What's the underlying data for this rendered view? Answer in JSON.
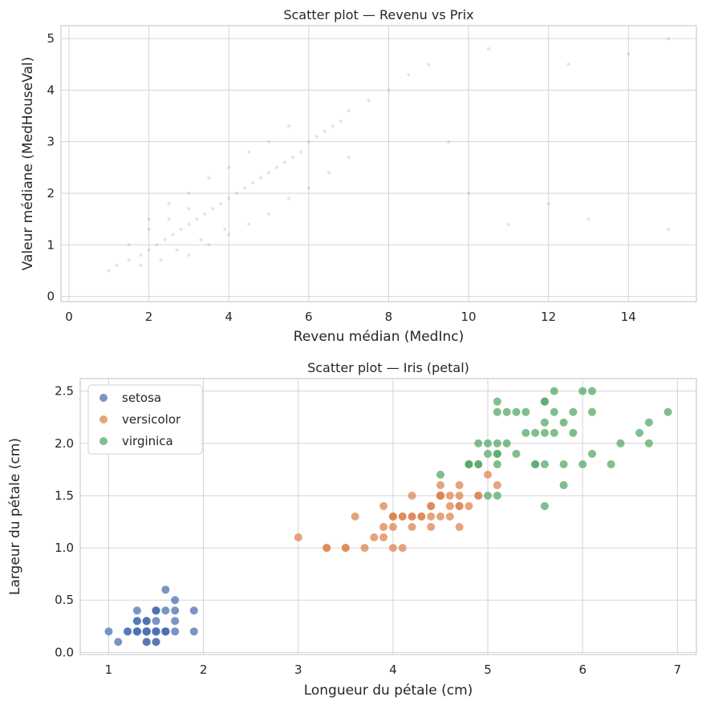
{
  "chart_data": [
    {
      "type": "scatter",
      "title": "Scatter plot — Revenu vs Prix",
      "xlabel": "Revenu médian (MedInc)",
      "ylabel": "Valeur médiane (MedHouseVal)",
      "xlim": [
        -0.2,
        15.7
      ],
      "ylim": [
        -0.1,
        5.25
      ],
      "x_ticks": [
        "0",
        "2",
        "4",
        "6",
        "8",
        "10",
        "12",
        "14"
      ],
      "x_tick_values": [
        0,
        2,
        4,
        6,
        8,
        10,
        12,
        14
      ],
      "y_ticks": [
        "0",
        "1",
        "2",
        "3",
        "4",
        "5"
      ],
      "y_tick_values": [
        0,
        1,
        2,
        3,
        4,
        5
      ],
      "grid": true,
      "series": [
        {
          "color": "#4682b4",
          "opacity": 0.2,
          "points": [
            [
              1.2,
              0.6
            ],
            [
              1.5,
              0.7
            ],
            [
              1.8,
              0.8
            ],
            [
              2.0,
              0.9
            ],
            [
              2.2,
              1.0
            ],
            [
              2.4,
              1.1
            ],
            [
              2.6,
              1.2
            ],
            [
              2.8,
              1.3
            ],
            [
              3.0,
              1.4
            ],
            [
              3.2,
              1.5
            ],
            [
              3.4,
              1.6
            ],
            [
              3.6,
              1.7
            ],
            [
              3.8,
              1.8
            ],
            [
              4.0,
              1.9
            ],
            [
              4.2,
              2.0
            ],
            [
              4.4,
              2.1
            ],
            [
              4.6,
              2.2
            ],
            [
              4.8,
              2.3
            ],
            [
              5.0,
              2.4
            ],
            [
              5.2,
              2.5
            ],
            [
              5.4,
              2.6
            ],
            [
              5.6,
              2.7
            ],
            [
              5.8,
              2.8
            ],
            [
              6.0,
              3.0
            ],
            [
              6.2,
              3.1
            ],
            [
              6.4,
              3.2
            ],
            [
              6.6,
              3.3
            ],
            [
              6.8,
              3.4
            ],
            [
              7.0,
              3.6
            ],
            [
              7.5,
              3.8
            ],
            [
              8.0,
              4.0
            ],
            [
              8.5,
              4.3
            ],
            [
              9.0,
              4.5
            ],
            [
              2.0,
              1.5
            ],
            [
              2.5,
              1.8
            ],
            [
              3.0,
              2.0
            ],
            [
              3.5,
              2.3
            ],
            [
              4.0,
              2.5
            ],
            [
              4.5,
              2.8
            ],
            [
              5.0,
              3.0
            ],
            [
              5.5,
              3.3
            ],
            [
              3.0,
              0.8
            ],
            [
              3.5,
              1.0
            ],
            [
              4.0,
              1.2
            ],
            [
              4.5,
              1.4
            ],
            [
              5.0,
              1.6
            ],
            [
              5.5,
              1.9
            ],
            [
              6.0,
              2.1
            ],
            [
              6.5,
              2.4
            ],
            [
              7.0,
              2.7
            ],
            [
              1.5,
              1.0
            ],
            [
              2.0,
              1.3
            ],
            [
              2.5,
              1.5
            ],
            [
              3.0,
              1.7
            ],
            [
              1.0,
              0.5
            ],
            [
              1.8,
              0.6
            ],
            [
              2.3,
              0.7
            ],
            [
              2.7,
              0.9
            ],
            [
              3.3,
              1.1
            ],
            [
              3.9,
              1.3
            ],
            [
              10.0,
              2.0
            ],
            [
              12.0,
              1.8
            ],
            [
              13.0,
              1.5
            ],
            [
              15.0,
              1.3
            ],
            [
              11.0,
              1.4
            ],
            [
              9.5,
              3.0
            ],
            [
              10.5,
              4.8
            ],
            [
              12.5,
              4.5
            ],
            [
              14.0,
              4.7
            ],
            [
              15.0,
              5.0
            ]
          ]
        }
      ]
    },
    {
      "type": "scatter",
      "title": "Scatter plot — Iris (petal)",
      "xlabel": "Longueur du pétale (cm)",
      "ylabel": "Largeur du pétale (cm)",
      "xlim": [
        0.7,
        7.2
      ],
      "ylim": [
        -0.02,
        2.62
      ],
      "x_ticks": [
        "1",
        "2",
        "3",
        "4",
        "5",
        "6",
        "7"
      ],
      "x_tick_values": [
        1,
        2,
        3,
        4,
        5,
        6,
        7
      ],
      "y_ticks": [
        "0.0",
        "0.5",
        "1.0",
        "1.5",
        "2.0",
        "2.5"
      ],
      "y_tick_values": [
        0,
        0.5,
        1.0,
        1.5,
        2.0,
        2.5
      ],
      "grid": true,
      "legend": "top-left",
      "series": [
        {
          "name": "setosa",
          "color": "#4c72b0",
          "points": [
            [
              1.4,
              0.2
            ],
            [
              1.4,
              0.2
            ],
            [
              1.3,
              0.2
            ],
            [
              1.5,
              0.2
            ],
            [
              1.4,
              0.2
            ],
            [
              1.7,
              0.4
            ],
            [
              1.4,
              0.3
            ],
            [
              1.5,
              0.2
            ],
            [
              1.4,
              0.2
            ],
            [
              1.5,
              0.1
            ],
            [
              1.5,
              0.2
            ],
            [
              1.6,
              0.2
            ],
            [
              1.4,
              0.1
            ],
            [
              1.1,
              0.1
            ],
            [
              1.2,
              0.2
            ],
            [
              1.5,
              0.4
            ],
            [
              1.3,
              0.4
            ],
            [
              1.4,
              0.3
            ],
            [
              1.7,
              0.3
            ],
            [
              1.5,
              0.3
            ],
            [
              1.7,
              0.2
            ],
            [
              1.5,
              0.4
            ],
            [
              1.0,
              0.2
            ],
            [
              1.7,
              0.5
            ],
            [
              1.9,
              0.2
            ],
            [
              1.6,
              0.2
            ],
            [
              1.6,
              0.4
            ],
            [
              1.5,
              0.2
            ],
            [
              1.4,
              0.2
            ],
            [
              1.6,
              0.2
            ],
            [
              1.6,
              0.2
            ],
            [
              1.5,
              0.4
            ],
            [
              1.5,
              0.1
            ],
            [
              1.4,
              0.2
            ],
            [
              1.5,
              0.2
            ],
            [
              1.2,
              0.2
            ],
            [
              1.3,
              0.2
            ],
            [
              1.4,
              0.1
            ],
            [
              1.3,
              0.2
            ],
            [
              1.5,
              0.2
            ],
            [
              1.3,
              0.3
            ],
            [
              1.3,
              0.3
            ],
            [
              1.3,
              0.2
            ],
            [
              1.6,
              0.6
            ],
            [
              1.9,
              0.4
            ],
            [
              1.4,
              0.3
            ],
            [
              1.6,
              0.2
            ],
            [
              1.4,
              0.2
            ],
            [
              1.5,
              0.2
            ],
            [
              1.4,
              0.2
            ]
          ]
        },
        {
          "name": "versicolor",
          "color": "#dd8452",
          "points": [
            [
              4.7,
              1.4
            ],
            [
              4.5,
              1.5
            ],
            [
              4.9,
              1.5
            ],
            [
              4.0,
              1.3
            ],
            [
              4.6,
              1.5
            ],
            [
              4.5,
              1.3
            ],
            [
              4.7,
              1.6
            ],
            [
              3.3,
              1.0
            ],
            [
              4.6,
              1.3
            ],
            [
              3.9,
              1.4
            ],
            [
              3.5,
              1.0
            ],
            [
              4.2,
              1.5
            ],
            [
              4.0,
              1.0
            ],
            [
              4.7,
              1.4
            ],
            [
              3.6,
              1.3
            ],
            [
              4.4,
              1.4
            ],
            [
              4.5,
              1.5
            ],
            [
              4.1,
              1.0
            ],
            [
              4.5,
              1.5
            ],
            [
              3.9,
              1.1
            ],
            [
              4.8,
              1.8
            ],
            [
              4.0,
              1.3
            ],
            [
              4.9,
              1.5
            ],
            [
              4.7,
              1.2
            ],
            [
              4.3,
              1.3
            ],
            [
              4.4,
              1.4
            ],
            [
              4.8,
              1.4
            ],
            [
              5.0,
              1.7
            ],
            [
              4.5,
              1.5
            ],
            [
              3.5,
              1.0
            ],
            [
              3.8,
              1.1
            ],
            [
              3.7,
              1.0
            ],
            [
              3.9,
              1.2
            ],
            [
              5.1,
              1.6
            ],
            [
              4.5,
              1.5
            ],
            [
              4.5,
              1.6
            ],
            [
              4.7,
              1.5
            ],
            [
              4.4,
              1.3
            ],
            [
              4.1,
              1.3
            ],
            [
              4.0,
              1.3
            ],
            [
              4.4,
              1.2
            ],
            [
              4.6,
              1.4
            ],
            [
              4.0,
              1.2
            ],
            [
              3.3,
              1.0
            ],
            [
              4.2,
              1.3
            ],
            [
              4.2,
              1.2
            ],
            [
              4.2,
              1.3
            ],
            [
              4.3,
              1.3
            ],
            [
              3.0,
              1.1
            ],
            [
              4.1,
              1.3
            ]
          ]
        },
        {
          "name": "virginica",
          "color": "#55a868",
          "points": [
            [
              6.0,
              2.5
            ],
            [
              5.1,
              1.9
            ],
            [
              5.9,
              2.1
            ],
            [
              5.6,
              1.8
            ],
            [
              5.8,
              2.2
            ],
            [
              6.6,
              2.1
            ],
            [
              4.5,
              1.7
            ],
            [
              6.3,
              1.8
            ],
            [
              5.8,
              1.8
            ],
            [
              6.1,
              2.5
            ],
            [
              5.1,
              2.0
            ],
            [
              5.3,
              1.9
            ],
            [
              5.5,
              2.1
            ],
            [
              5.0,
              2.0
            ],
            [
              5.1,
              2.4
            ],
            [
              5.3,
              2.3
            ],
            [
              5.5,
              1.8
            ],
            [
              6.7,
              2.2
            ],
            [
              6.9,
              2.3
            ],
            [
              5.0,
              1.5
            ],
            [
              5.7,
              2.3
            ],
            [
              4.9,
              2.0
            ],
            [
              6.7,
              2.0
            ],
            [
              4.9,
              1.8
            ],
            [
              5.7,
              2.1
            ],
            [
              6.0,
              1.8
            ],
            [
              4.8,
              1.8
            ],
            [
              4.9,
              1.8
            ],
            [
              5.6,
              2.1
            ],
            [
              5.8,
              1.6
            ],
            [
              6.1,
              1.9
            ],
            [
              6.4,
              2.0
            ],
            [
              5.6,
              2.2
            ],
            [
              5.1,
              1.5
            ],
            [
              5.6,
              1.4
            ],
            [
              6.1,
              2.3
            ],
            [
              5.6,
              2.4
            ],
            [
              5.5,
              1.8
            ],
            [
              4.8,
              1.8
            ],
            [
              5.4,
              2.1
            ],
            [
              5.6,
              2.4
            ],
            [
              5.1,
              2.3
            ],
            [
              5.1,
              1.9
            ],
            [
              5.9,
              2.3
            ],
            [
              5.7,
              2.5
            ],
            [
              5.2,
              2.3
            ],
            [
              5.0,
              1.9
            ],
            [
              5.2,
              2.0
            ],
            [
              5.4,
              2.3
            ],
            [
              5.1,
              1.8
            ]
          ]
        }
      ]
    }
  ]
}
